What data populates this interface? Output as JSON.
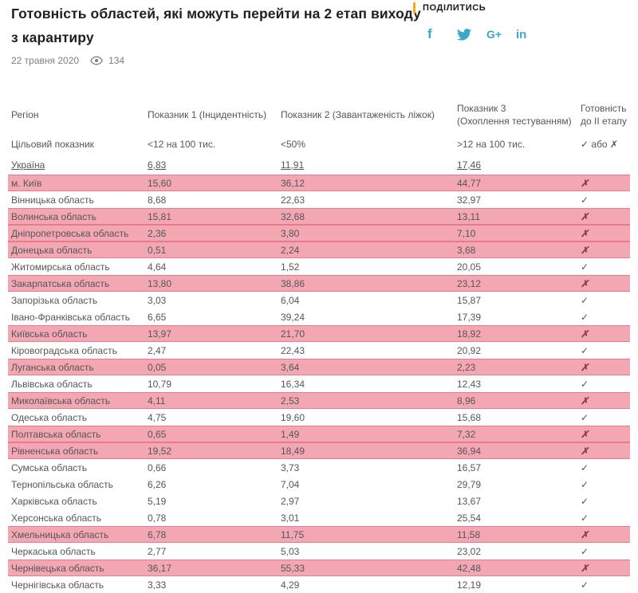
{
  "header": {
    "title": "Готовність областей, які можуть перейти на 2 етап виходу з карантиру",
    "date": "22 травня 2020",
    "views": "134",
    "share_label": "ПОДІЛИТИСЬ"
  },
  "social": [
    {
      "name": "facebook",
      "glyph": "f"
    },
    {
      "name": "twitter",
      "glyph": ""
    },
    {
      "name": "googleplus",
      "glyph": "G+"
    },
    {
      "name": "linkedin",
      "glyph": "in"
    }
  ],
  "colors": {
    "accent_yellow": "#f9a91a",
    "social_blue": "#3da6ca",
    "row_highlight": "#f3a7b2",
    "row_highlight_border": "#e87a89",
    "table_text": "#55565a"
  },
  "table": {
    "columns": [
      {
        "line1": "Регіон",
        "line2": ""
      },
      {
        "line1": "Показник 1 (Інцидентність)",
        "line2": ""
      },
      {
        "line1": "Показник 2 (Завантаженість ліжок)",
        "line2": ""
      },
      {
        "line1": "Показник 3",
        "line2": "(Охоплення тестуванням)"
      },
      {
        "line1": "Готовність",
        "line2": "до II етапу"
      }
    ],
    "target_row": {
      "label": "Цільовий показник",
      "v1": "<12 на 100 тис.",
      "v2": "<50%",
      "v3": ">12 на 100 тис.",
      "ready": "✓ або ✗"
    },
    "ukraine_row": {
      "label": "Україна",
      "v1": "6,83",
      "v2": "11,91",
      "v3": "17,46"
    },
    "rows": [
      {
        "region": "м. Київ",
        "v1": "15,60",
        "v2": "36,12",
        "v3": "44,77",
        "ready": "✗"
      },
      {
        "region": "Вінницька область",
        "v1": "8,68",
        "v2": "22,63",
        "v3": "32,97",
        "ready": "✓"
      },
      {
        "region": "Волинська область",
        "v1": "15,81",
        "v2": "32,68",
        "v3": "13,11",
        "ready": "✗"
      },
      {
        "region": "Дніпропетровська область",
        "v1": "2,36",
        "v2": "3,80",
        "v3": "7,10",
        "ready": "✗"
      },
      {
        "region": "Донецька область",
        "v1": "0,51",
        "v2": "2,24",
        "v3": "3,68",
        "ready": "✗"
      },
      {
        "region": "Житомирська область",
        "v1": "4,64",
        "v2": "1,52",
        "v3": "20,05",
        "ready": "✓"
      },
      {
        "region": "Закарпатська область",
        "v1": "13,80",
        "v2": "38,86",
        "v3": "23,12",
        "ready": "✗"
      },
      {
        "region": "Запорізька область",
        "v1": "3,03",
        "v2": "6,04",
        "v3": "15,87",
        "ready": "✓"
      },
      {
        "region": "Івано-Франківська область",
        "v1": "6,65",
        "v2": "39,24",
        "v3": "17,39",
        "ready": "✓"
      },
      {
        "region": "Київська область",
        "v1": "13,97",
        "v2": "21,70",
        "v3": "18,92",
        "ready": "✗"
      },
      {
        "region": "Кіровоградська область",
        "v1": "2,47",
        "v2": "22,43",
        "v3": "20,92",
        "ready": "✓"
      },
      {
        "region": "Луганська область",
        "v1": "0,05",
        "v2": "3,64",
        "v3": "2,23",
        "ready": "✗"
      },
      {
        "region": "Львівська область",
        "v1": "10,79",
        "v2": "16,34",
        "v3": "12,43",
        "ready": "✓"
      },
      {
        "region": "Миколаївська область",
        "v1": "4,11",
        "v2": "2,53",
        "v3": "8,96",
        "ready": "✗"
      },
      {
        "region": "Одеська область",
        "v1": "4,75",
        "v2": "19,60",
        "v3": "15,68",
        "ready": "✓"
      },
      {
        "region": "Полтавська область",
        "v1": "0,65",
        "v2": "1,49",
        "v3": "7,32",
        "ready": "✗"
      },
      {
        "region": "Рівненська область",
        "v1": "19,52",
        "v2": "18,49",
        "v3": "36,94",
        "ready": "✗"
      },
      {
        "region": "Сумська область",
        "v1": "0,66",
        "v2": "3,73",
        "v3": "16,57",
        "ready": "✓"
      },
      {
        "region": "Тернопільська область",
        "v1": "6,26",
        "v2": "7,04",
        "v3": "29,79",
        "ready": "✓"
      },
      {
        "region": "Харківська область",
        "v1": "5,19",
        "v2": "2,97",
        "v3": "13,67",
        "ready": "✓"
      },
      {
        "region": "Херсонська область",
        "v1": "0,78",
        "v2": "3,01",
        "v3": "25,54",
        "ready": "✓"
      },
      {
        "region": "Хмельницька область",
        "v1": "6,78",
        "v2": "11,75",
        "v3": "11,58",
        "ready": "✗"
      },
      {
        "region": "Черкаська область",
        "v1": "2,77",
        "v2": "5,03",
        "v3": "23,02",
        "ready": "✓"
      },
      {
        "region": "Чернівецька область",
        "v1": "36,17",
        "v2": "55,33",
        "v3": "42,48",
        "ready": "✗"
      },
      {
        "region": "Чернігівська область",
        "v1": "3,33",
        "v2": "4,29",
        "v3": "12,19",
        "ready": "✓"
      }
    ]
  }
}
